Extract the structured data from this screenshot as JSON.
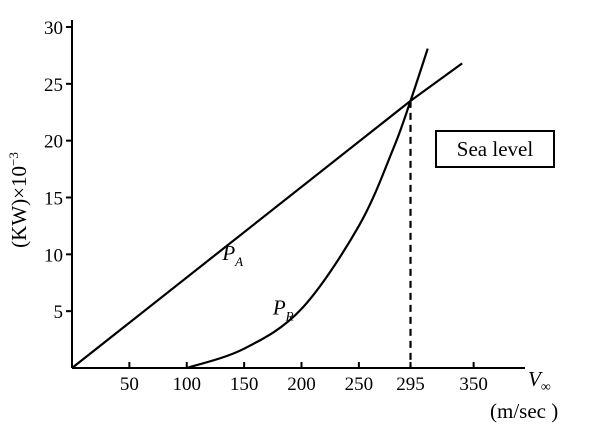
{
  "chart_data": {
    "type": "line",
    "title": "",
    "ylabel": "(KW)×10",
    "ylabel_exponent": "−3",
    "xlabel_symbol": "V",
    "xlabel_subscript": "∞",
    "xlabel_units": "(m/sec )",
    "xlim": [
      0,
      405
    ],
    "ylim": [
      0,
      30
    ],
    "x_ticks": [
      {
        "value": 50,
        "label": "50"
      },
      {
        "value": 100,
        "label": "100"
      },
      {
        "value": 150,
        "label": "150"
      },
      {
        "value": 200,
        "label": "200"
      },
      {
        "value": 250,
        "label": "250"
      },
      {
        "value": 295,
        "label": "295"
      },
      {
        "value": 350,
        "label": "350"
      }
    ],
    "y_ticks": [
      {
        "value": 5,
        "label": "5"
      },
      {
        "value": 10,
        "label": "10"
      },
      {
        "value": 15,
        "label": "15"
      },
      {
        "value": 20,
        "label": "20"
      },
      {
        "value": 25,
        "label": "25"
      },
      {
        "value": 30,
        "label": "30"
      }
    ],
    "series": [
      {
        "name": "P_A",
        "label_main": "P",
        "label_sub": "A",
        "x": [
          0,
          295,
          340
        ],
        "y": [
          0,
          23.5,
          26.8
        ]
      },
      {
        "name": "P_R",
        "label_main": "P",
        "label_sub": "R",
        "x": [
          100,
          150,
          200,
          250,
          280,
          295,
          310
        ],
        "y": [
          0,
          1.7,
          5.2,
          12.5,
          19.3,
          23.5,
          28.1
        ]
      }
    ],
    "intersection": {
      "x": 295,
      "y": 23.5
    },
    "annotation": "Sea level",
    "grid": false
  }
}
